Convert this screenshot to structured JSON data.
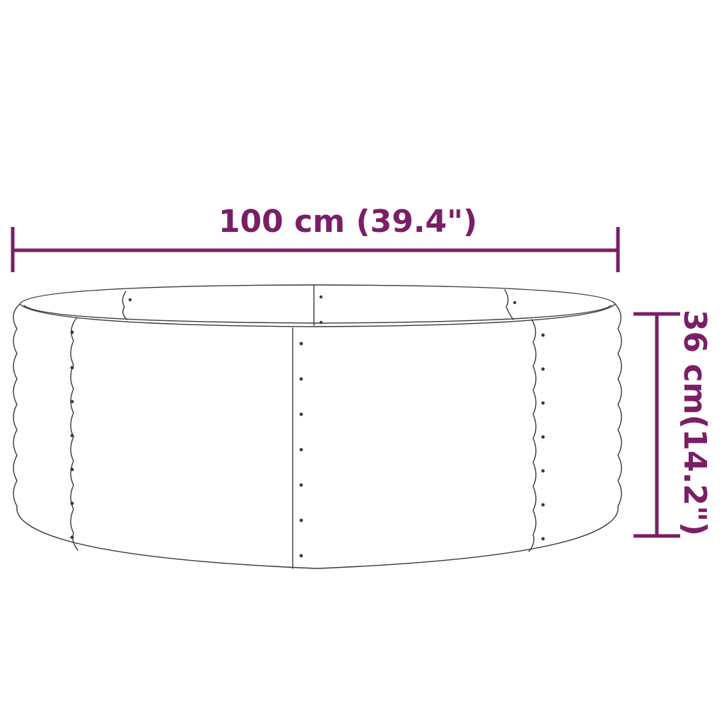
{
  "dimensions": {
    "width_label": "100 cm (39.4\")",
    "height_label": "36 cm(14.2\")"
  },
  "colors": {
    "dimension_line": "#7a1f66",
    "outline": "#3a3a3a",
    "background": "#ffffff"
  }
}
